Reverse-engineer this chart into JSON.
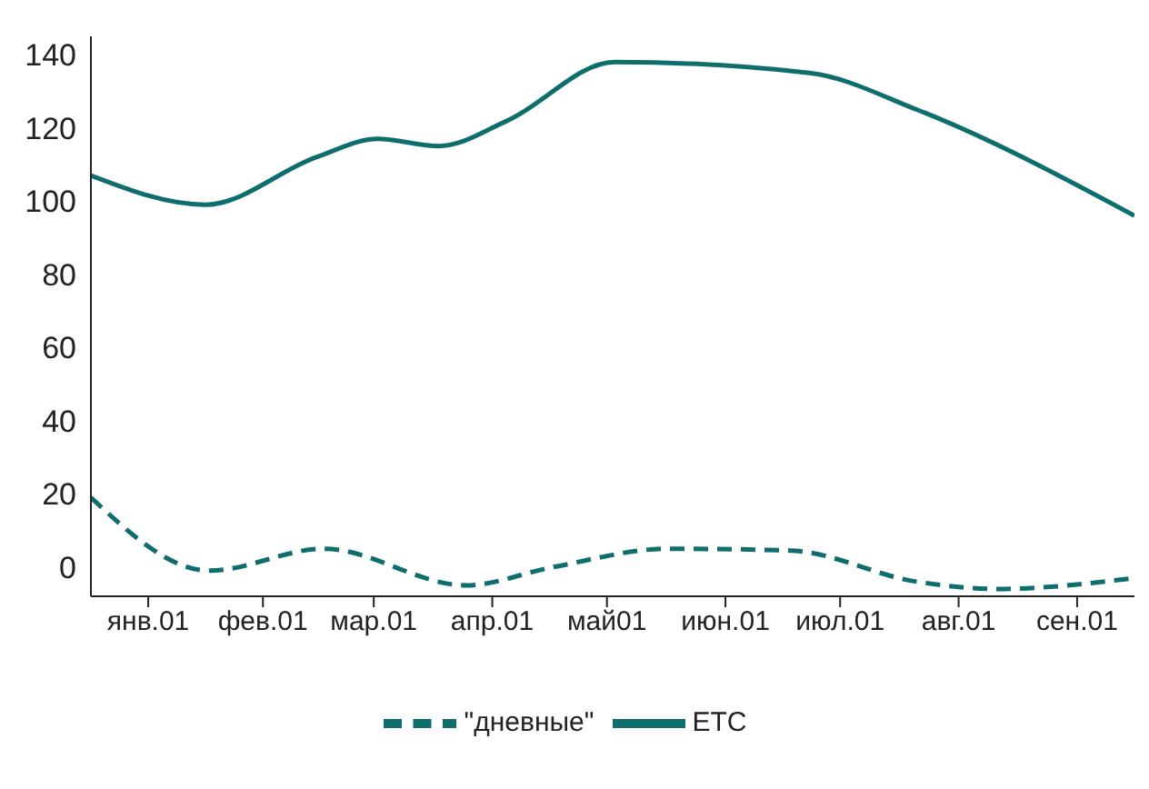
{
  "chart_data": {
    "type": "line",
    "xlim": [
      "2001-01-01",
      "2001-10-01"
    ],
    "xticks": [
      {
        "value": "2001-01-16",
        "label": "янв.01"
      },
      {
        "value": "2001-02-15",
        "label": "фев.01"
      },
      {
        "value": "2001-03-16",
        "label": "мар.01"
      },
      {
        "value": "2001-04-16",
        "label": "апр.01"
      },
      {
        "value": "2001-05-16",
        "label": "май01"
      },
      {
        "value": "2001-06-16",
        "label": "июн.01"
      },
      {
        "value": "2001-07-16",
        "label": "июл.01"
      },
      {
        "value": "2001-08-16",
        "label": "авг.01"
      },
      {
        "value": "2001-09-16",
        "label": "сен.01"
      }
    ],
    "ylim": [
      -8,
      145
    ],
    "yticks": [
      0,
      20,
      40,
      60,
      80,
      100,
      120,
      140
    ],
    "grid": false,
    "legend": "bottom",
    "marker": "none",
    "series": [
      {
        "name": "\"дневные\"",
        "color": "#0e6e6e",
        "line_style": "dashed",
        "x": [
          "2001-01-01",
          "2001-02-01",
          "2001-03-03",
          "2001-04-09",
          "2001-05-02",
          "2001-06-01",
          "2001-07-03",
          "2001-08-05",
          "2001-08-26",
          "2001-10-01"
        ],
        "values": [
          19,
          -1,
          5,
          -5,
          0,
          5,
          4.5,
          -4,
          -6,
          -3
        ]
      },
      {
        "name": "ETC",
        "color": "#0e6e6e",
        "line_style": "solid",
        "x": [
          "2001-01-01",
          "2001-01-31",
          "2001-03-01",
          "2001-03-17",
          "2001-04-02",
          "2001-04-20",
          "2001-05-18",
          "2001-07-08",
          "2001-08-05",
          "2001-10-01"
        ],
        "values": [
          107,
          99,
          112,
          117,
          115,
          122,
          138,
          135,
          125,
          96
        ]
      }
    ]
  }
}
